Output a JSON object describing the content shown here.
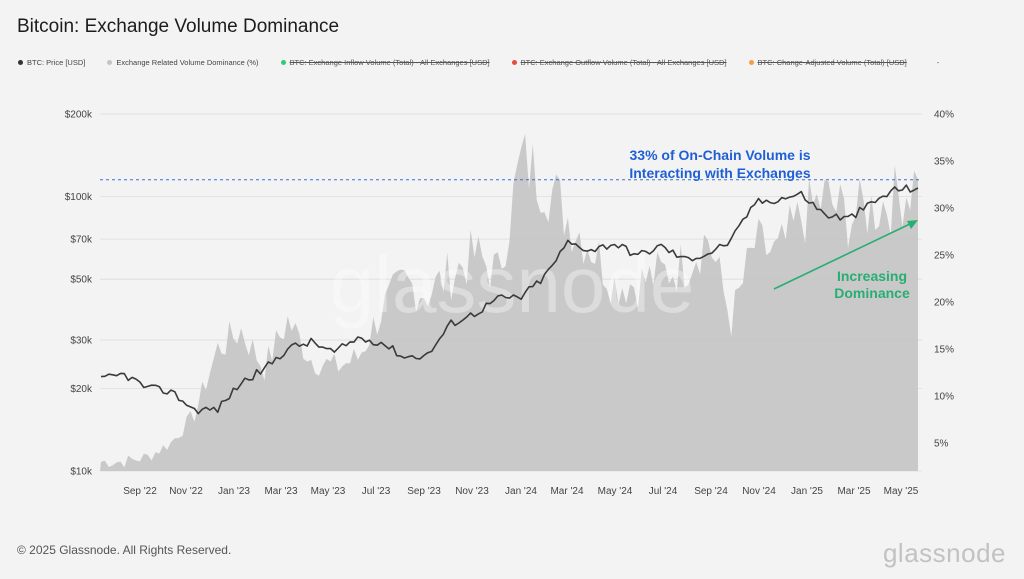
{
  "title": "Bitcoin: Exchange Volume Dominance",
  "legend": [
    {
      "label": "BTC: Price [USD]",
      "color": "#333333",
      "active": true
    },
    {
      "label": "Exchange Related Volume Dominance (%)",
      "color": "#c4c4c4",
      "active": true
    },
    {
      "label": "BTC: Exchange Inflow Volume (Total) - All Exchanges [USD]",
      "color": "#2ecc71",
      "active": false
    },
    {
      "label": "BTC: Exchange Outflow Volume (Total) - All Exchanges [USD]",
      "color": "#e74c3c",
      "active": false
    },
    {
      "label": "BTC: Change-Adjusted Volume (Total) [USD]",
      "color": "#f39c4a",
      "active": false
    }
  ],
  "legend_trailing": "-",
  "annotations": {
    "exchange_note_line1": "33% of On-Chain Volume is",
    "exchange_note_line2": "Interacting with Exchanges",
    "trend_note_line1": "Increasing",
    "trend_note_line2": "Dominance",
    "note_color": "#1f5fd6",
    "trend_color": "#27ae72"
  },
  "watermark": "glassnode",
  "footer": "© 2025 Glassnode. All Rights Reserved.",
  "brand": "glassnode",
  "chart_data": {
    "type": "line",
    "title": "Bitcoin: Exchange Volume Dominance",
    "x_ticks": [
      "Sep '22",
      "Nov '22",
      "Jan '23",
      "Mar '23",
      "May '23",
      "Jul '23",
      "Sep '23",
      "Nov '23",
      "Jan '24",
      "Mar '24",
      "May '24",
      "Jul '24",
      "Sep '24",
      "Nov '24",
      "Jan '25",
      "Mar '25",
      "May '25"
    ],
    "y_left": {
      "scale": "log",
      "range": [
        10000,
        200000
      ],
      "ticks": [
        10000,
        20000,
        30000,
        50000,
        70000,
        100000,
        200000
      ],
      "tick_labels": [
        "$10k",
        "$20k",
        "$30k",
        "$50k",
        "$70k",
        "$100k",
        "$200k"
      ]
    },
    "y_right": {
      "scale": "linear",
      "range": [
        2,
        40
      ],
      "ticks": [
        5,
        10,
        15,
        20,
        25,
        30,
        35,
        40
      ],
      "tick_labels": [
        "5%",
        "10%",
        "15%",
        "20%",
        "25%",
        "30%",
        "35%",
        "40%"
      ]
    },
    "reference_line": {
      "value_percent": 33,
      "style": "dashed",
      "color": "#3b6fd8"
    },
    "series": [
      {
        "name": "BTC: Price [USD]",
        "axis": "left",
        "color": "#3a3a3a",
        "dates": [
          "Jul '22",
          "Aug '22",
          "Sep '22",
          "Oct '22",
          "Nov '22",
          "Dec '22",
          "Jan '23",
          "Feb '23",
          "Mar '23",
          "Apr '23",
          "May '23",
          "Jun '23",
          "Jul '23",
          "Aug '23",
          "Sep '23",
          "Oct '23",
          "Nov '23",
          "Dec '23",
          "Jan '24",
          "Feb '24",
          "Mar '24",
          "Apr '24",
          "May '24",
          "Jun '24",
          "Jul '24",
          "Aug '24",
          "Sep '24",
          "Oct '24",
          "Nov '24",
          "Dec '24",
          "Jan '25",
          "Feb '25",
          "Mar '25",
          "Apr '25",
          "May '25",
          "Jun '25"
        ],
        "values": [
          21500,
          22500,
          20000,
          19500,
          16700,
          16800,
          21000,
          23500,
          28000,
          29500,
          27000,
          30500,
          29500,
          26000,
          26500,
          34500,
          37500,
          42500,
          43000,
          51000,
          68000,
          64000,
          67500,
          61000,
          66000,
          59000,
          62000,
          69000,
          95000,
          98000,
          102000,
          86000,
          83000,
          94000,
          106000,
          107500
        ]
      },
      {
        "name": "Exchange Related Volume Dominance (%)",
        "axis": "right",
        "color": "#c4c4c4",
        "dates": [
          "Jul '22",
          "Aug '22",
          "Sep '22",
          "Oct '22",
          "Nov '22",
          "Dec '22",
          "Jan '23",
          "Feb '23",
          "Mar '23",
          "Apr '23",
          "May '23",
          "Jun '23",
          "Jul '23",
          "Aug '23",
          "Sep '23",
          "Oct '23",
          "Nov '23",
          "Dec '23",
          "Jan '24",
          "Feb '24",
          "Mar '24",
          "Apr '24",
          "May '24",
          "Jun '24",
          "Jul '24",
          "Aug '24",
          "Sep '24",
          "Oct '24",
          "Nov '24",
          "Dec '24",
          "Jan '25",
          "Feb '25",
          "Mar '25",
          "Apr '25",
          "May '25",
          "Jun '25"
        ],
        "values": [
          3,
          3,
          3.5,
          5,
          8,
          15,
          17,
          13,
          18,
          14,
          13,
          14,
          19,
          22,
          21,
          23,
          25,
          23,
          35,
          33,
          29,
          26,
          22,
          22,
          23,
          24,
          27,
          18,
          26,
          25,
          29,
          31,
          29,
          30,
          31,
          33
        ]
      }
    ]
  }
}
